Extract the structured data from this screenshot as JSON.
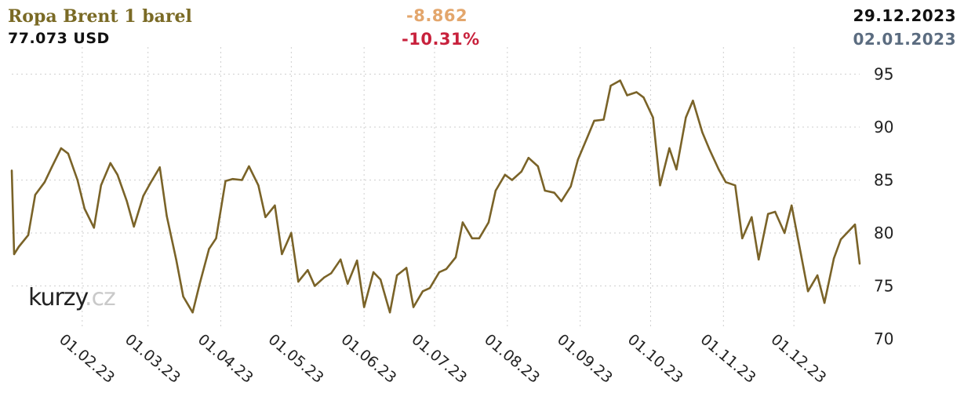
{
  "header": {
    "title": "Ropa Brent 1 barel",
    "price": "77.073 USD",
    "change_abs": "-8.862",
    "change_pct": "-10.31%",
    "date_to": "29.12.2023",
    "date_from": "02.01.2023"
  },
  "watermark": {
    "main": "kurzy",
    "suffix": ".cz"
  },
  "colors": {
    "line": "#7a6328",
    "grid": "#cfcfcf",
    "axis_text": "#222222"
  },
  "chart_data": {
    "type": "line",
    "title": "Ropa Brent 1 barel",
    "xlabel": "",
    "ylabel": "",
    "ylim": [
      70,
      96
    ],
    "y_ticks": [
      70,
      75,
      80,
      85,
      90,
      95
    ],
    "x_ticks": [
      "01.02.23",
      "01.03.23",
      "01.04.23",
      "01.05.23",
      "01.06.23",
      "01.07.23",
      "01.08.23",
      "01.09.23",
      "01.10.23",
      "01.11.23",
      "01.12.23"
    ],
    "grid": true,
    "series": [
      {
        "x": [
          "2023-01-02",
          "2023-01-03",
          "2023-01-05",
          "2023-01-09",
          "2023-01-12",
          "2023-01-16",
          "2023-01-19",
          "2023-01-23",
          "2023-01-26",
          "2023-01-30",
          "2023-02-02",
          "2023-02-06",
          "2023-02-09",
          "2023-02-13",
          "2023-02-16",
          "2023-02-20",
          "2023-02-23",
          "2023-02-27",
          "2023-03-02",
          "2023-03-06",
          "2023-03-09",
          "2023-03-13",
          "2023-03-16",
          "2023-03-20",
          "2023-03-23",
          "2023-03-27",
          "2023-03-30",
          "2023-04-03",
          "2023-04-06",
          "2023-04-10",
          "2023-04-13",
          "2023-04-17",
          "2023-04-20",
          "2023-04-24",
          "2023-04-27",
          "2023-05-01",
          "2023-05-04",
          "2023-05-08",
          "2023-05-11",
          "2023-05-15",
          "2023-05-18",
          "2023-05-22",
          "2023-05-25",
          "2023-05-29",
          "2023-06-01",
          "2023-06-05",
          "2023-06-08",
          "2023-06-12",
          "2023-06-15",
          "2023-06-19",
          "2023-06-22",
          "2023-06-26",
          "2023-06-29",
          "2023-07-03",
          "2023-07-06",
          "2023-07-10",
          "2023-07-13",
          "2023-07-17",
          "2023-07-20",
          "2023-07-24",
          "2023-07-27",
          "2023-07-31",
          "2023-08-03",
          "2023-08-07",
          "2023-08-10",
          "2023-08-14",
          "2023-08-17",
          "2023-08-21",
          "2023-08-24",
          "2023-08-28",
          "2023-08-31",
          "2023-09-04",
          "2023-09-07",
          "2023-09-11",
          "2023-09-14",
          "2023-09-18",
          "2023-09-21",
          "2023-09-25",
          "2023-09-28",
          "2023-10-02",
          "2023-10-05",
          "2023-10-09",
          "2023-10-12",
          "2023-10-16",
          "2023-10-19",
          "2023-10-23",
          "2023-10-26",
          "2023-10-30",
          "2023-11-02",
          "2023-11-06",
          "2023-11-09",
          "2023-11-13",
          "2023-11-16",
          "2023-11-20",
          "2023-11-23",
          "2023-11-27",
          "2023-11-30",
          "2023-12-04",
          "2023-12-07",
          "2023-12-11",
          "2023-12-14",
          "2023-12-18",
          "2023-12-21",
          "2023-12-27",
          "2023-12-29"
        ],
        "y": [
          85.9,
          78.0,
          78.7,
          79.8,
          83.6,
          84.8,
          86.2,
          88.0,
          87.5,
          85.0,
          82.3,
          80.5,
          84.5,
          86.6,
          85.5,
          83.0,
          80.6,
          83.5,
          84.7,
          86.2,
          81.6,
          77.5,
          74.0,
          72.5,
          75.2,
          78.5,
          79.5,
          84.9,
          85.1,
          85.0,
          86.3,
          84.5,
          81.5,
          82.6,
          78.0,
          80.0,
          75.4,
          76.5,
          75.0,
          75.8,
          76.2,
          77.5,
          75.2,
          77.4,
          73.0,
          76.3,
          75.6,
          72.5,
          76.0,
          76.7,
          73.0,
          74.5,
          74.8,
          76.3,
          76.6,
          77.7,
          81.0,
          79.5,
          79.5,
          81.0,
          84.0,
          85.5,
          85.0,
          85.8,
          87.1,
          86.3,
          84.0,
          83.8,
          83.0,
          84.4,
          86.9,
          89.0,
          90.6,
          90.7,
          93.9,
          94.4,
          93.0,
          93.3,
          92.8,
          90.9,
          84.5,
          88.0,
          86.0,
          90.9,
          92.5,
          89.5,
          87.9,
          86.0,
          84.8,
          84.5,
          79.5,
          81.5,
          77.5,
          81.8,
          82.0,
          80.0,
          82.6,
          78.0,
          74.5,
          76.0,
          73.4,
          77.6,
          79.4,
          80.8,
          77.1
        ]
      }
    ]
  }
}
